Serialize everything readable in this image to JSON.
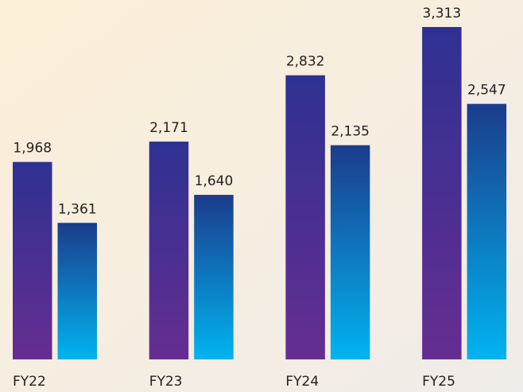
{
  "chart_data": {
    "type": "bar",
    "categories": [
      "FY22",
      "FY23",
      "FY24",
      "FY25"
    ],
    "series": [
      {
        "colors": [
          "#2e3192",
          "#662d91"
        ],
        "values": [
          1968,
          2171,
          2832,
          3313
        ],
        "value_labels": [
          "1,968",
          "2,171",
          "2,832",
          "3,313"
        ]
      },
      {
        "colors": [
          "#1b3c8c",
          "#00b4f0"
        ],
        "values": [
          1361,
          1640,
          2135,
          2547
        ],
        "value_labels": [
          "1,361",
          "1,640",
          "2,135",
          "2,547"
        ]
      }
    ],
    "ylim": [
      0,
      3400
    ]
  }
}
